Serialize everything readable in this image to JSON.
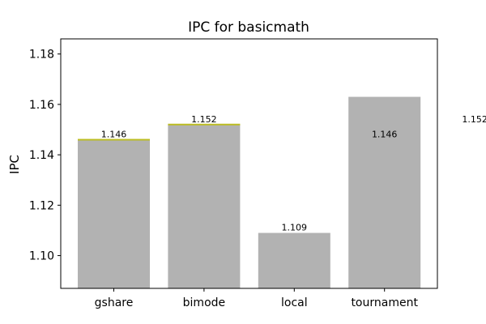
{
  "chart_data": {
    "type": "bar",
    "title": "IPC for basicmath",
    "xlabel": "",
    "ylabel": "IPC",
    "categories": [
      "gshare",
      "bimode",
      "local",
      "tournament"
    ],
    "values": [
      1.146,
      1.152,
      1.109,
      1.163
    ],
    "ylim": [
      1.087,
      1.186
    ],
    "yticks": [
      "1.10",
      "1.12",
      "1.14",
      "1.16",
      "1.18"
    ],
    "ytick_values": [
      1.1,
      1.12,
      1.14,
      1.16,
      1.18
    ],
    "bar_color": "#b2b2b2",
    "marker_color": "#bcbd22",
    "marker_values": [
      1.146,
      1.152
    ],
    "data_labels": [
      {
        "text": "1.146",
        "category": "gshare",
        "value": 1.146
      },
      {
        "text": "1.152",
        "category": "bimode",
        "value": 1.152
      },
      {
        "text": "1.109",
        "category": "local",
        "value": 1.109
      },
      {
        "text": "1.146",
        "category": "tournament",
        "value": 1.146
      },
      {
        "text": "1.152",
        "category": "after-tournament",
        "value": 1.152
      }
    ],
    "grid": false
  }
}
